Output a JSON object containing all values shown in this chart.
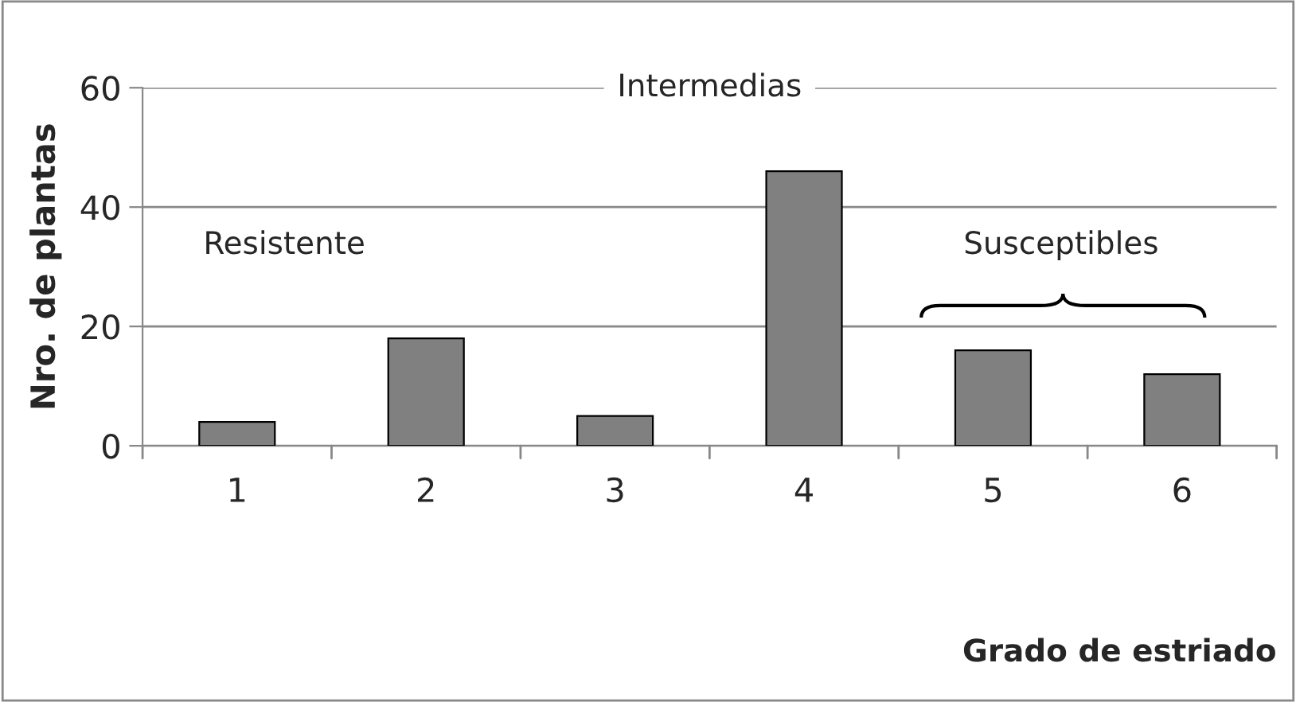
{
  "chart_data": {
    "type": "bar",
    "xlabel": "Grado de estriado",
    "ylabel": "Nro. de plantas",
    "categories": [
      "1",
      "2",
      "3",
      "4",
      "5",
      "6"
    ],
    "values": [
      4,
      18,
      5,
      46,
      16,
      12
    ],
    "color": "#808080",
    "ylim": [
      0,
      60
    ],
    "yticks": [
      0,
      20,
      40,
      60
    ],
    "grid": "y",
    "legend": false,
    "annotations": [
      "Intermedias",
      "Resistente",
      "Susceptibles"
    ]
  }
}
